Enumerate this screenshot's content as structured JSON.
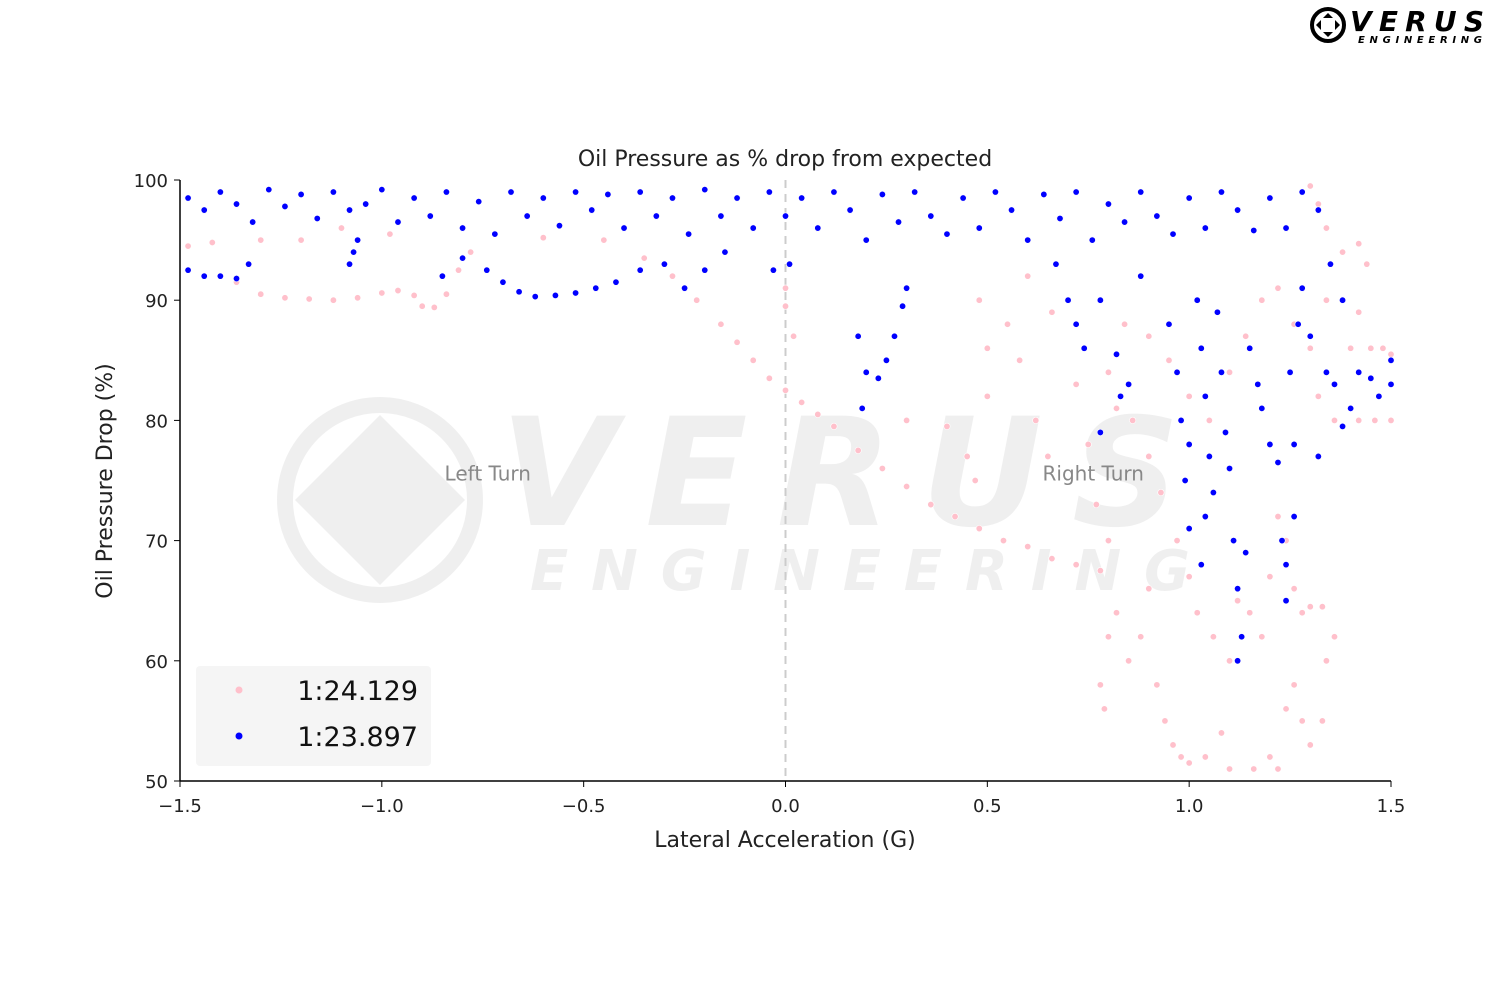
{
  "logo": {
    "brand": "VERUS",
    "sub": "ENGINEERING"
  },
  "watermark": {
    "brand": "VERUS",
    "sub": "ENGINEERING"
  },
  "chart_data": {
    "type": "scatter",
    "title": "Oil Pressure as % drop from expected",
    "xlabel": "Lateral Acceleration (G)",
    "ylabel": "Oil Pressure Drop (%)",
    "xlim": [
      -1.5,
      1.5
    ],
    "ylim": [
      50,
      100
    ],
    "xticks": [
      -1.5,
      -1.0,
      -0.5,
      0.0,
      0.5,
      1.0,
      1.5
    ],
    "xtick_labels": [
      "−1.5",
      "−1.0",
      "−0.5",
      "0.0",
      "0.5",
      "1.0",
      "1.5"
    ],
    "yticks": [
      50,
      60,
      70,
      80,
      90,
      100
    ],
    "ytick_labels": [
      "50",
      "60",
      "70",
      "80",
      "90",
      "100"
    ],
    "grid": false,
    "legend": "bottom-left",
    "reference_line": {
      "x": 0.0,
      "style": "dashed",
      "color": "#cccccc"
    },
    "annotations": [
      {
        "text": "Left Turn",
        "x": -0.75,
        "y": 75
      },
      {
        "text": "Right Turn",
        "x": 0.75,
        "y": 75
      }
    ],
    "series": [
      {
        "name": "1:24.129",
        "color": "#ffc0cb",
        "points": [
          [
            -1.48,
            94.5
          ],
          [
            -1.42,
            94.8
          ],
          [
            -1.36,
            91.5
          ],
          [
            -1.3,
            90.5
          ],
          [
            -1.24,
            90.2
          ],
          [
            -1.18,
            90.1
          ],
          [
            -1.12,
            90
          ],
          [
            -1.06,
            90.2
          ],
          [
            -1.0,
            90.6
          ],
          [
            -0.96,
            90.8
          ],
          [
            -0.92,
            90.4
          ],
          [
            -0.9,
            89.5
          ],
          [
            -0.87,
            89.4
          ],
          [
            -0.84,
            90.5
          ],
          [
            -0.81,
            92.5
          ],
          [
            -0.78,
            94
          ],
          [
            -1.3,
            95
          ],
          [
            -1.2,
            95
          ],
          [
            -1.1,
            96
          ],
          [
            -0.98,
            95.5
          ],
          [
            -0.6,
            95.2
          ],
          [
            -0.45,
            95
          ],
          [
            -0.35,
            93.5
          ],
          [
            -0.28,
            92
          ],
          [
            -0.22,
            90
          ],
          [
            -0.16,
            88
          ],
          [
            -0.12,
            86.5
          ],
          [
            -0.08,
            85
          ],
          [
            -0.04,
            83.5
          ],
          [
            0.0,
            82.5
          ],
          [
            0.04,
            81.5
          ],
          [
            0.08,
            80.5
          ],
          [
            0.12,
            79.5
          ],
          [
            0.18,
            77.5
          ],
          [
            0.24,
            76
          ],
          [
            0.3,
            74.5
          ],
          [
            0.36,
            73
          ],
          [
            0.42,
            72
          ],
          [
            0.48,
            71
          ],
          [
            0.54,
            70
          ],
          [
            0.6,
            69.5
          ],
          [
            0.66,
            68.5
          ],
          [
            0.72,
            68
          ],
          [
            0.78,
            67.5
          ],
          [
            0.0,
            89.5
          ],
          [
            0.02,
            87
          ],
          [
            0.0,
            91
          ],
          [
            0.3,
            80
          ],
          [
            0.4,
            79.5
          ],
          [
            0.45,
            77
          ],
          [
            0.47,
            75
          ],
          [
            0.5,
            82
          ],
          [
            0.5,
            86
          ],
          [
            0.48,
            90
          ],
          [
            0.55,
            88
          ],
          [
            0.58,
            85
          ],
          [
            0.62,
            80
          ],
          [
            0.65,
            77
          ],
          [
            0.6,
            92
          ],
          [
            0.66,
            89
          ],
          [
            0.72,
            83
          ],
          [
            0.75,
            78
          ],
          [
            0.77,
            73
          ],
          [
            0.8,
            70
          ],
          [
            0.8,
            62
          ],
          [
            0.78,
            58
          ],
          [
            0.79,
            56
          ],
          [
            0.82,
            64
          ],
          [
            0.85,
            60
          ],
          [
            0.88,
            62
          ],
          [
            0.9,
            66
          ],
          [
            0.92,
            58
          ],
          [
            0.94,
            55
          ],
          [
            0.96,
            53
          ],
          [
            0.98,
            52
          ],
          [
            1.0,
            51.5
          ],
          [
            1.04,
            52
          ],
          [
            1.08,
            54
          ],
          [
            1.1,
            51
          ],
          [
            1.16,
            51
          ],
          [
            1.2,
            52
          ],
          [
            1.22,
            51
          ],
          [
            1.24,
            56
          ],
          [
            1.26,
            58
          ],
          [
            1.28,
            55
          ],
          [
            1.3,
            53
          ],
          [
            1.33,
            55
          ],
          [
            1.34,
            60
          ],
          [
            1.36,
            62
          ],
          [
            1.33,
            64.5
          ],
          [
            1.3,
            64.5
          ],
          [
            1.28,
            64
          ],
          [
            1.26,
            66
          ],
          [
            1.24,
            70
          ],
          [
            1.22,
            72
          ],
          [
            1.2,
            67
          ],
          [
            1.18,
            62
          ],
          [
            1.15,
            64
          ],
          [
            1.12,
            65
          ],
          [
            1.1,
            60
          ],
          [
            1.06,
            62
          ],
          [
            1.02,
            64
          ],
          [
            1.0,
            67
          ],
          [
            0.97,
            70
          ],
          [
            0.93,
            74
          ],
          [
            0.9,
            77
          ],
          [
            0.86,
            80
          ],
          [
            0.82,
            81
          ],
          [
            0.8,
            84
          ],
          [
            0.84,
            88
          ],
          [
            0.9,
            87
          ],
          [
            0.95,
            85
          ],
          [
            1.0,
            82
          ],
          [
            1.05,
            80
          ],
          [
            1.1,
            84
          ],
          [
            1.14,
            87
          ],
          [
            1.18,
            90
          ],
          [
            1.22,
            91
          ],
          [
            1.26,
            88
          ],
          [
            1.3,
            86
          ],
          [
            1.34,
            90
          ],
          [
            1.38,
            94
          ],
          [
            1.42,
            94.7
          ],
          [
            1.44,
            93
          ],
          [
            1.42,
            89
          ],
          [
            1.4,
            86
          ],
          [
            1.45,
            86
          ],
          [
            1.48,
            86
          ],
          [
            1.5,
            85.5
          ],
          [
            1.5,
            80
          ],
          [
            1.46,
            80
          ],
          [
            1.42,
            80
          ],
          [
            1.36,
            80
          ],
          [
            1.32,
            82
          ],
          [
            1.32,
            98
          ],
          [
            1.34,
            96
          ],
          [
            1.3,
            99.5
          ]
        ]
      },
      {
        "name": "1:23.897",
        "color": "#0000ff",
        "points": [
          [
            -1.48,
            98.5
          ],
          [
            -1.44,
            97.5
          ],
          [
            -1.4,
            99
          ],
          [
            -1.36,
            98
          ],
          [
            -1.32,
            96.5
          ],
          [
            -1.28,
            99.2
          ],
          [
            -1.24,
            97.8
          ],
          [
            -1.2,
            98.8
          ],
          [
            -1.16,
            96.8
          ],
          [
            -1.12,
            99
          ],
          [
            -1.08,
            97.5
          ],
          [
            -1.07,
            94
          ],
          [
            -1.08,
            93
          ],
          [
            -1.06,
            95
          ],
          [
            -1.04,
            98
          ],
          [
            -1.0,
            99.2
          ],
          [
            -0.96,
            96.5
          ],
          [
            -0.92,
            98.5
          ],
          [
            -0.88,
            97
          ],
          [
            -0.84,
            99
          ],
          [
            -0.8,
            96
          ],
          [
            -0.76,
            98.2
          ],
          [
            -0.72,
            95.5
          ],
          [
            -0.68,
            99
          ],
          [
            -0.64,
            97
          ],
          [
            -0.6,
            98.5
          ],
          [
            -0.56,
            96.2
          ],
          [
            -0.52,
            99
          ],
          [
            -0.48,
            97.5
          ],
          [
            -0.44,
            98.8
          ],
          [
            -0.4,
            96
          ],
          [
            -0.36,
            99
          ],
          [
            -0.32,
            97
          ],
          [
            -0.28,
            98.5
          ],
          [
            -0.24,
            95.5
          ],
          [
            -0.2,
            99.2
          ],
          [
            -0.16,
            97
          ],
          [
            -0.12,
            98.5
          ],
          [
            -0.08,
            96
          ],
          [
            -0.04,
            99
          ],
          [
            0.0,
            97
          ],
          [
            0.01,
            93
          ],
          [
            -0.03,
            92.5
          ],
          [
            0.04,
            98.5
          ],
          [
            0.08,
            96
          ],
          [
            0.12,
            99
          ],
          [
            0.16,
            97.5
          ],
          [
            0.2,
            95
          ],
          [
            0.24,
            98.8
          ],
          [
            0.28,
            96.5
          ],
          [
            0.32,
            99
          ],
          [
            0.36,
            97
          ],
          [
            0.4,
            95.5
          ],
          [
            0.44,
            98.5
          ],
          [
            0.48,
            96
          ],
          [
            0.52,
            99
          ],
          [
            0.56,
            97.5
          ],
          [
            0.6,
            95
          ],
          [
            0.64,
            98.8
          ],
          [
            0.68,
            96.8
          ],
          [
            0.72,
            99
          ],
          [
            0.76,
            95
          ],
          [
            0.8,
            98
          ],
          [
            0.84,
            96.5
          ],
          [
            0.88,
            99
          ],
          [
            0.92,
            97
          ],
          [
            0.96,
            95.5
          ],
          [
            1.0,
            98.5
          ],
          [
            1.04,
            96
          ],
          [
            1.08,
            99
          ],
          [
            1.12,
            97.5
          ],
          [
            1.16,
            95.8
          ],
          [
            1.2,
            98.5
          ],
          [
            1.24,
            96
          ],
          [
            1.28,
            99
          ],
          [
            1.32,
            97.5
          ],
          [
            -1.48,
            92.5
          ],
          [
            -1.44,
            92
          ],
          [
            -1.4,
            92
          ],
          [
            -1.36,
            91.8
          ],
          [
            -1.33,
            93
          ],
          [
            -0.85,
            92
          ],
          [
            -0.8,
            93.5
          ],
          [
            -0.74,
            92.5
          ],
          [
            -0.7,
            91.5
          ],
          [
            -0.66,
            90.7
          ],
          [
            -0.62,
            90.3
          ],
          [
            -0.57,
            90.4
          ],
          [
            -0.52,
            90.6
          ],
          [
            -0.47,
            91
          ],
          [
            -0.42,
            91.5
          ],
          [
            -0.36,
            92.5
          ],
          [
            -0.3,
            93
          ],
          [
            -0.25,
            91
          ],
          [
            -0.2,
            92.5
          ],
          [
            -0.15,
            94
          ],
          [
            0.18,
            87
          ],
          [
            0.2,
            84
          ],
          [
            0.19,
            81
          ],
          [
            0.23,
            83.5
          ],
          [
            0.25,
            85
          ],
          [
            0.27,
            87
          ],
          [
            0.29,
            89.5
          ],
          [
            0.3,
            91
          ],
          [
            0.67,
            93
          ],
          [
            0.7,
            90
          ],
          [
            0.72,
            88
          ],
          [
            0.74,
            86
          ],
          [
            0.78,
            90
          ],
          [
            0.82,
            85.5
          ],
          [
            0.83,
            82
          ],
          [
            0.78,
            79
          ],
          [
            0.85,
            83
          ],
          [
            0.88,
            92
          ],
          [
            0.95,
            88
          ],
          [
            0.97,
            84
          ],
          [
            0.98,
            80
          ],
          [
            0.99,
            75
          ],
          [
            1.0,
            71
          ],
          [
            1.0,
            78
          ],
          [
            1.02,
            90
          ],
          [
            1.03,
            86
          ],
          [
            1.04,
            82
          ],
          [
            1.05,
            77
          ],
          [
            1.04,
            72
          ],
          [
            1.03,
            68
          ],
          [
            1.06,
            74
          ],
          [
            1.07,
            89
          ],
          [
            1.08,
            84
          ],
          [
            1.09,
            79
          ],
          [
            1.1,
            76
          ],
          [
            1.11,
            70
          ],
          [
            1.12,
            66
          ],
          [
            1.12,
            60
          ],
          [
            1.13,
            62
          ],
          [
            1.14,
            69
          ],
          [
            1.15,
            86
          ],
          [
            1.17,
            83
          ],
          [
            1.18,
            81
          ],
          [
            1.2,
            78
          ],
          [
            1.22,
            76.5
          ],
          [
            1.23,
            70
          ],
          [
            1.24,
            68
          ],
          [
            1.24,
            65
          ],
          [
            1.26,
            72
          ],
          [
            1.26,
            78
          ],
          [
            1.25,
            84
          ],
          [
            1.27,
            88
          ],
          [
            1.28,
            91
          ],
          [
            1.3,
            87
          ],
          [
            1.32,
            77
          ],
          [
            1.34,
            84
          ],
          [
            1.36,
            83
          ],
          [
            1.38,
            79.5
          ],
          [
            1.4,
            81
          ],
          [
            1.42,
            84
          ],
          [
            1.45,
            83.5
          ],
          [
            1.47,
            82
          ],
          [
            1.5,
            83
          ],
          [
            1.5,
            85
          ],
          [
            1.38,
            90
          ],
          [
            1.35,
            93
          ]
        ]
      }
    ]
  }
}
